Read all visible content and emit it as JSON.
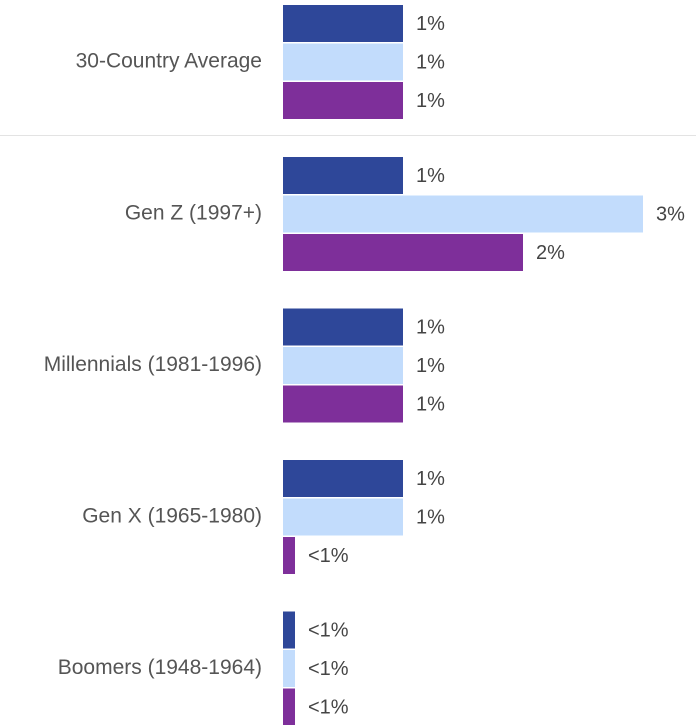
{
  "chart_data": {
    "type": "bar",
    "orientation": "horizontal",
    "categories": [
      "30-Country Average",
      "Gen Z (1997+)",
      "Millennials (1981-1996)",
      "Gen X (1965-1980)",
      "Boomers (1948-1964)"
    ],
    "series": [
      {
        "color": "#2e4799",
        "values": [
          1,
          1,
          1,
          1,
          0.1
        ],
        "value_labels": [
          "1%",
          "1%",
          "1%",
          "1%",
          "<1%"
        ]
      },
      {
        "color": "#c2dcfc",
        "values": [
          1,
          3,
          1,
          1,
          0.1
        ],
        "value_labels": [
          "1%",
          "3%",
          "1%",
          "1%",
          "<1%"
        ]
      },
      {
        "color": "#7e2f9a",
        "values": [
          1,
          2,
          1,
          0.1,
          0.1
        ],
        "value_labels": [
          "1%",
          "2%",
          "1%",
          "<1%",
          "<1%"
        ]
      }
    ]
  }
}
